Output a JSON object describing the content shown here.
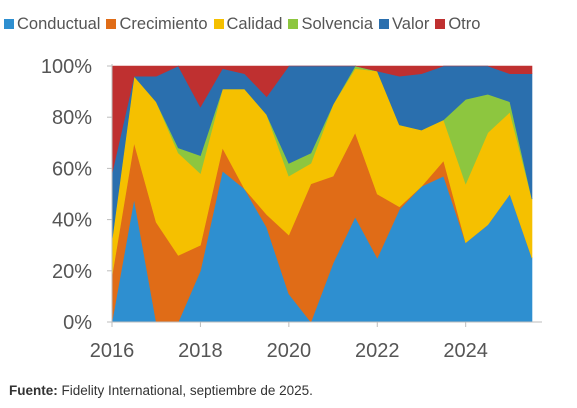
{
  "chart_data": {
    "type": "area",
    "stacked": true,
    "x": [
      2016.0,
      2016.5,
      2017.0,
      2017.5,
      2018.0,
      2018.5,
      2019.0,
      2019.5,
      2020.0,
      2020.5,
      2021.0,
      2021.5,
      2022.0,
      2022.5,
      2023.0,
      2023.5,
      2024.0,
      2024.5,
      2025.0,
      2025.5
    ],
    "series": [
      {
        "name": "Conductual",
        "color": "#2e8fd0",
        "values": [
          0,
          48,
          0,
          0,
          20,
          59,
          52,
          37,
          11,
          0,
          23,
          41,
          25,
          44,
          53,
          57,
          31,
          38,
          50,
          25
        ]
      },
      {
        "name": "Crecimiento",
        "color": "#e06c17",
        "values": [
          18,
          22,
          39,
          26,
          10,
          9,
          0,
          5,
          23,
          54,
          34,
          33,
          25,
          1,
          0,
          6,
          0,
          0,
          0,
          0
        ]
      },
      {
        "name": "Calidad",
        "color": "#f5c000",
        "values": [
          14,
          26,
          47,
          40,
          28,
          23,
          39,
          39,
          23,
          8,
          28,
          25,
          48,
          32,
          22,
          16,
          23,
          36,
          32,
          23
        ]
      },
      {
        "name": "Solvencia",
        "color": "#8dc63f",
        "values": [
          0,
          0,
          0,
          2,
          7,
          0,
          0,
          0,
          5,
          4,
          0,
          1,
          0,
          0,
          0,
          0,
          33,
          15,
          4,
          0
        ]
      },
      {
        "name": "Valor",
        "color": "#2a6fae",
        "values": [
          26,
          0,
          10,
          32,
          19,
          8,
          6,
          7,
          38,
          34,
          15,
          0,
          0,
          19,
          22,
          21,
          13,
          11,
          11,
          49
        ]
      },
      {
        "name": "Otro",
        "color": "#bf3030",
        "values": [
          42,
          4,
          4,
          0,
          16,
          1,
          3,
          12,
          0,
          0,
          0,
          0,
          2,
          4,
          3,
          0,
          0,
          0,
          3,
          3
        ]
      }
    ],
    "xlim": [
      2016,
      2025.5
    ],
    "ylim": [
      0,
      100
    ],
    "xticks": [
      2016,
      2018,
      2020,
      2022,
      2024
    ],
    "xtick_labels": [
      "2016",
      "2018",
      "2020",
      "2022",
      "2024"
    ],
    "yticks": [
      0,
      20,
      40,
      60,
      80,
      100
    ],
    "ytick_labels": [
      "0%",
      "20%",
      "40%",
      "60%",
      "80%",
      "100%"
    ],
    "grid": false,
    "legend_position": "top"
  },
  "source": {
    "label": "Fuente:",
    "text": " Fidelity International, septiembre de 2025."
  }
}
